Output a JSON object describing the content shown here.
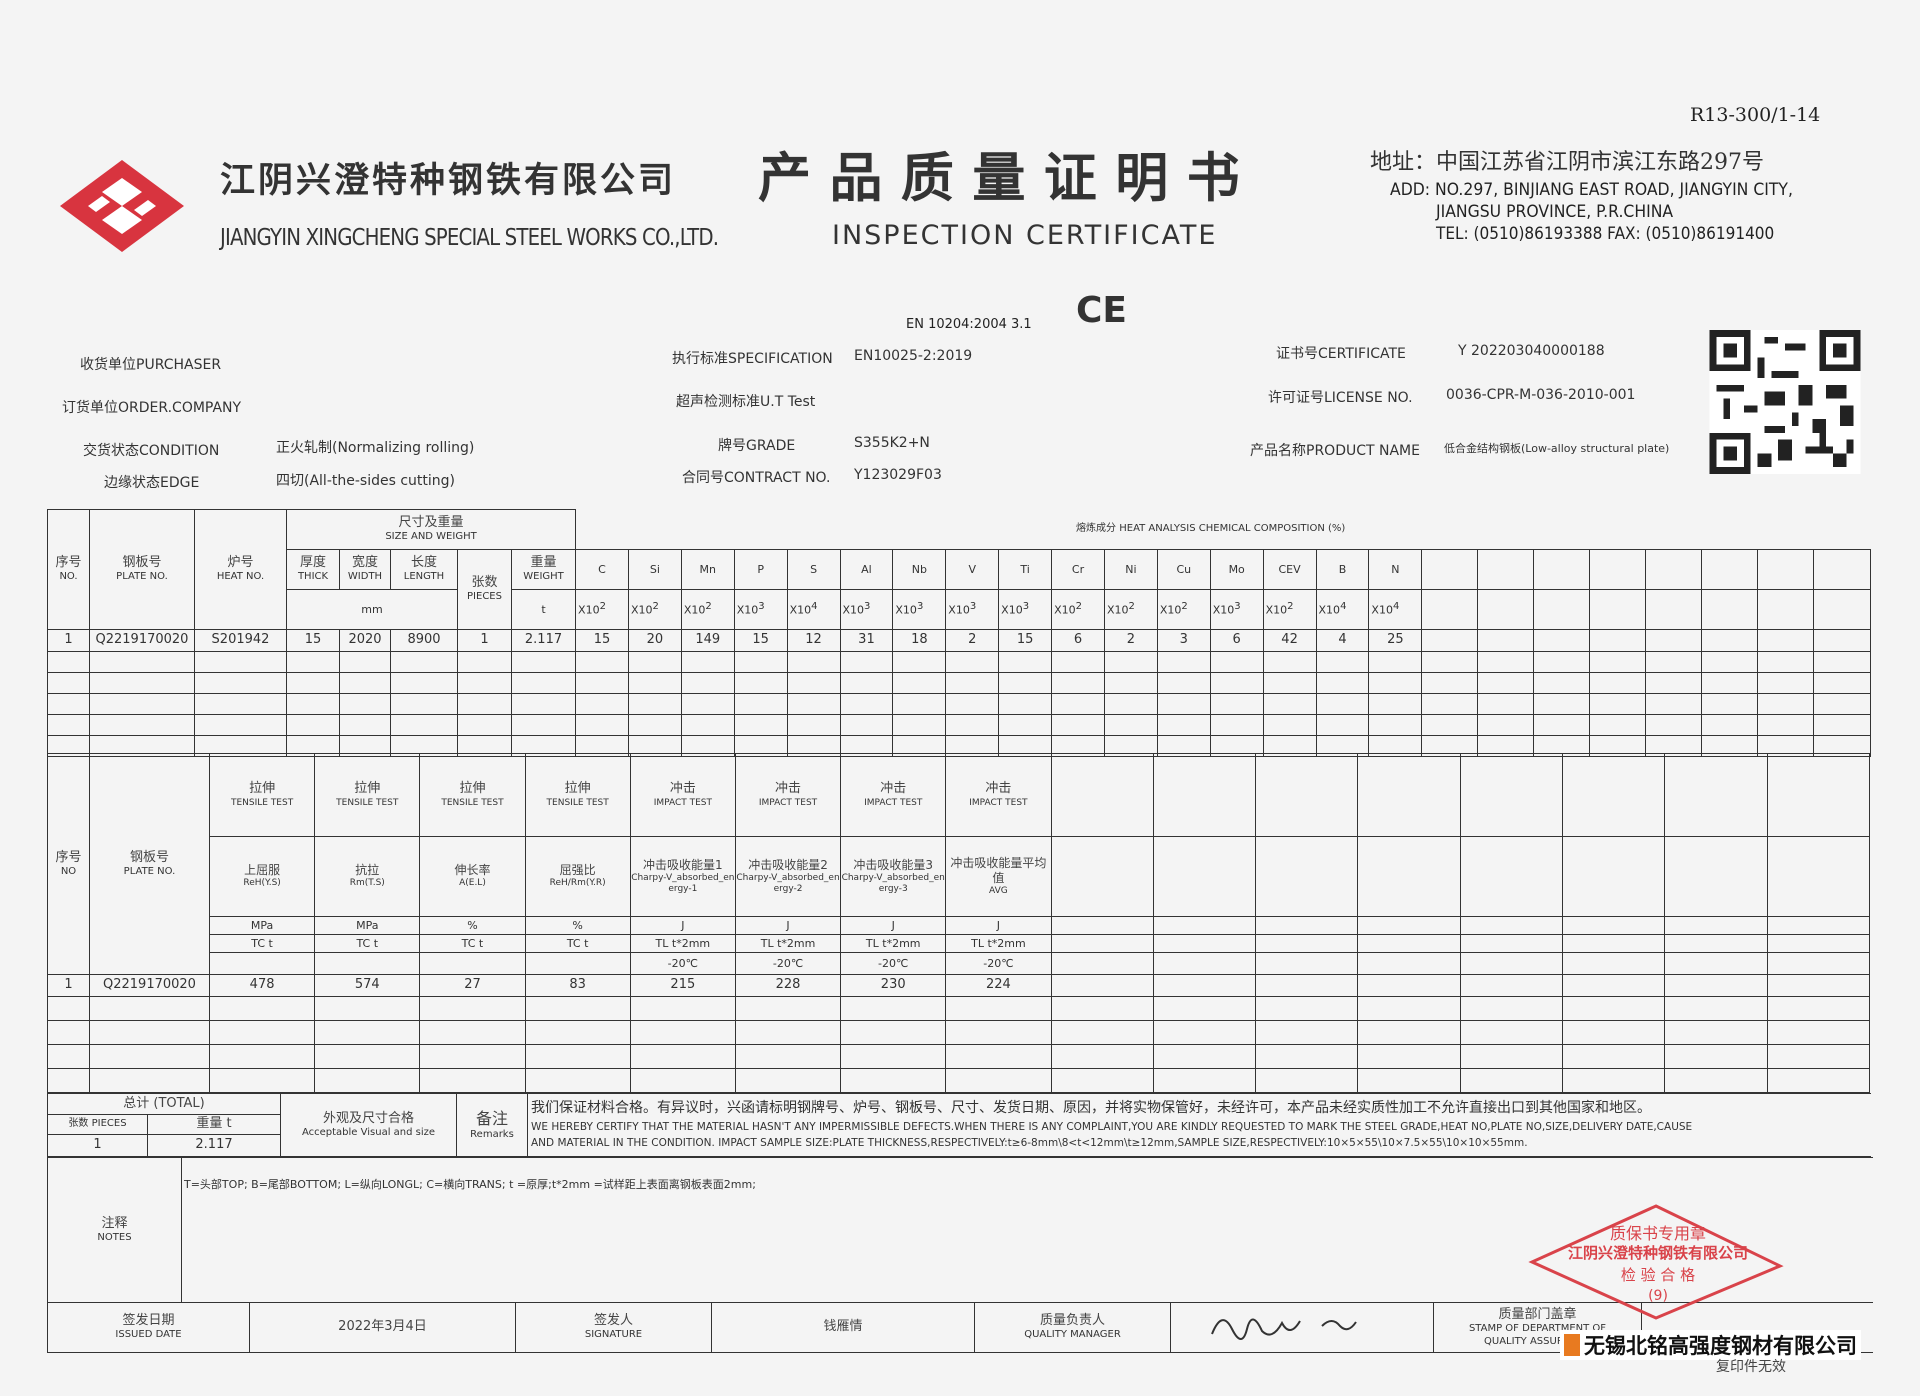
{
  "form_no": "R13-300/1-14",
  "company": {
    "name_cn": "江阴兴澄特种钢铁有限公司",
    "name_en": "JIANGYIN XINGCHENG SPECIAL STEEL WORKS CO.,LTD.",
    "logo_color": "#d8343f"
  },
  "title": {
    "cn": "产 品 质 量 证 明 书",
    "en": "INSPECTION CERTIFICATE"
  },
  "address": {
    "cn": "地址：中国江苏省江阴市滨江东路297号",
    "en_line1": "ADD: NO.297, BINJIANG EAST ROAD, JIANGYIN CITY,",
    "en_line2": "JIANGSU PROVINCE, P.R.CHINA",
    "tel": "TEL: (0510)86193388  FAX: (0510)86191400"
  },
  "standard": "EN 10204:2004 3.1",
  "ce_mark": "CE",
  "info": {
    "purchaser_label": "收货单位PURCHASER",
    "purchaser": "",
    "order_company_label": "订货单位ORDER.COMPANY",
    "order_company": "",
    "condition_label": "交货状态CONDITION",
    "condition": "正火轧制(Normalizing rolling)",
    "edge_label": "边缘状态EDGE",
    "edge": "四切(All-the-sides cutting)",
    "spec_label": "执行标准SPECIFICATION",
    "spec": "EN10025-2:2019",
    "ut_label": "超声检测标准U.T Test",
    "ut": "",
    "grade_label": "牌号GRADE",
    "grade": "S355K2+N",
    "contract_label": "合同号CONTRACT NO.",
    "contract": "Y123029F03",
    "certificate_label": "证书号CERTIFICATE",
    "certificate": "Y 202203040000188",
    "license_label": "许可证号LICENSE NO.",
    "license": "0036-CPR-M-036-2010-001",
    "product_label": "产品名称PRODUCT NAME",
    "product": "低合金结构钢板(Low-alloy structural plate)"
  },
  "chem_table": {
    "seq_cn": "序号",
    "seq_en": "NO.",
    "plate_cn": "钢板号",
    "plate_en": "PLATE NO.",
    "heat_cn": "炉号",
    "heat_en": "HEAT NO.",
    "size_cn": "尺寸及重量",
    "size_en": "SIZE AND WEIGHT",
    "thick_cn": "厚度",
    "thick_en": "THICK",
    "width_cn": "宽度",
    "width_en": "WIDTH",
    "length_cn": "长度",
    "length_en": "LENGTH",
    "pieces_cn": "张数",
    "pieces_en": "PIECES",
    "weight_cn": "重量",
    "weight_en": "WEIGHT",
    "mm": "mm",
    "t": "t",
    "chem_title": "熔炼成分 HEAT ANALYSIS CHEMICAL COMPOSITION (%)",
    "elements": [
      "C",
      "Si",
      "Mn",
      "P",
      "S",
      "Al",
      "Nb",
      "V",
      "Ti",
      "Cr",
      "Ni",
      "Cu",
      "Mo",
      "CEV",
      "B",
      "N"
    ],
    "multipliers": [
      "2",
      "2",
      "2",
      "3",
      "4",
      "3",
      "3",
      "3",
      "3",
      "2",
      "2",
      "2",
      "3",
      "2",
      "4",
      "4"
    ],
    "row": {
      "seq": "1",
      "plate": "Q2219170020",
      "heat": "S201942",
      "thick": "15",
      "width": "2020",
      "length": "8900",
      "pieces": "1",
      "weight": "2.117",
      "values": [
        "15",
        "20",
        "149",
        "15",
        "12",
        "31",
        "18",
        "2",
        "15",
        "6",
        "2",
        "3",
        "6",
        "42",
        "4",
        "25"
      ]
    }
  },
  "mech_table": {
    "seq_cn": "序号",
    "seq_en": "NO",
    "plate_cn": "钢板号",
    "plate_en": "PLATE NO.",
    "columns": [
      {
        "test_cn": "拉伸",
        "test_en": "TENSILE TEST",
        "item_cn": "上屈服",
        "item_en": "ReH(Y.S)",
        "unit": "MPa",
        "dir": "TC t",
        "temp": ""
      },
      {
        "test_cn": "拉伸",
        "test_en": "TENSILE TEST",
        "item_cn": "抗拉",
        "item_en": "Rm(T.S)",
        "unit": "MPa",
        "dir": "TC t",
        "temp": ""
      },
      {
        "test_cn": "拉伸",
        "test_en": "TENSILE TEST",
        "item_cn": "伸长率",
        "item_en": "A(E.L)",
        "unit": "%",
        "dir": "TC t",
        "temp": ""
      },
      {
        "test_cn": "拉伸",
        "test_en": "TENSILE TEST",
        "item_cn": "屈强比",
        "item_en": "ReH/Rm(Y.R)",
        "unit": "%",
        "dir": "TC t",
        "temp": ""
      },
      {
        "test_cn": "冲击",
        "test_en": "IMPACT TEST",
        "item_cn": "冲击吸收能量1",
        "item_en": "Charpy-V_absorbed_energy-1",
        "unit": "J",
        "dir": "TL t*2mm",
        "temp": "-20℃"
      },
      {
        "test_cn": "冲击",
        "test_en": "IMPACT TEST",
        "item_cn": "冲击吸收能量2",
        "item_en": "Charpy-V_absorbed_energy-2",
        "unit": "J",
        "dir": "TL t*2mm",
        "temp": "-20℃"
      },
      {
        "test_cn": "冲击",
        "test_en": "IMPACT TEST",
        "item_cn": "冲击吸收能量3",
        "item_en": "Charpy-V_absorbed_energy-3",
        "unit": "J",
        "dir": "TL t*2mm",
        "temp": "-20℃"
      },
      {
        "test_cn": "冲击",
        "test_en": "IMPACT TEST",
        "item_cn": "冲击吸收能量平均值",
        "item_en": "AVG",
        "unit": "J",
        "dir": "TL t*2mm",
        "temp": "-20℃"
      }
    ],
    "row": {
      "seq": "1",
      "plate": "Q2219170020",
      "values": [
        "478",
        "574",
        "27",
        "83",
        "215",
        "228",
        "230",
        "224"
      ]
    }
  },
  "totals": {
    "label": "总计 (TOTAL)",
    "pieces_label": "张数 PIECES",
    "weight_label": "重量 t",
    "pieces": "1",
    "weight": "2.117"
  },
  "visual": {
    "cn": "外观及尺寸合格",
    "en": "Acceptable Visual and size"
  },
  "remarks": {
    "label_cn": "备注",
    "label_en": "Remarks",
    "cn": "我们保证材料合格。有异议时，兴函请标明钢牌号、炉号、钢板号、尺寸、发货日期、原因，并将实物保管好，未经许可，本产品未经实质性加工不允许直接出口到其他国家和地区。",
    "en1": "WE HEREBY CERTIFY THAT THE MATERIAL HASN'T ANY IMPERMISSIBLE DEFECTS.WHEN THERE IS ANY COMPLAINT,YOU ARE KINDLY REQUESTED TO MARK THE STEEL GRADE,HEAT NO,PLATE NO,SIZE,DELIVERY DATE,CAUSE",
    "en2": "AND MATERIAL IN THE CONDITION. IMPACT SAMPLE SIZE:PLATE THICKNESS,RESPECTIVELY:t≥6-8mm\\8<t<12mm\\t≥12mm,SAMPLE SIZE,RESPECTIVELY:10×5×55\\10×7.5×55\\10×10×55mm."
  },
  "notes": {
    "label_cn": "注释",
    "label_en": "NOTES",
    "text": "T=头部TOP; B=尾部BOTTOM; L=纵向LONGL; C=横向TRANS; t =原厚;t*2mm =试样距上表面离钢板表面2mm;"
  },
  "footer": {
    "issued_cn": "签发日期",
    "issued_en": "ISSUED DATE",
    "date": "2022年3月4日",
    "signature_cn": "签发人",
    "signature_en": "SIGNATURE",
    "signer": "钱雁情",
    "qm_cn": "质量负责人",
    "qm_en": "QUALITY MANAGER",
    "dept_cn": "质量部门盖章",
    "dept_en1": "STAMP OF DEPARTMENT OF",
    "dept_en2": "QUALITY ASSURANCE"
  },
  "stamp": {
    "line1": "质保书专用章",
    "line2": "江阴兴澄特种钢铁有限公司",
    "line3": "检 验 合 格",
    "num": "(9)",
    "color": "#d9434a"
  },
  "watermark": "无锡北铭高强度钢材有限公司",
  "copy_note": "复印件无效"
}
